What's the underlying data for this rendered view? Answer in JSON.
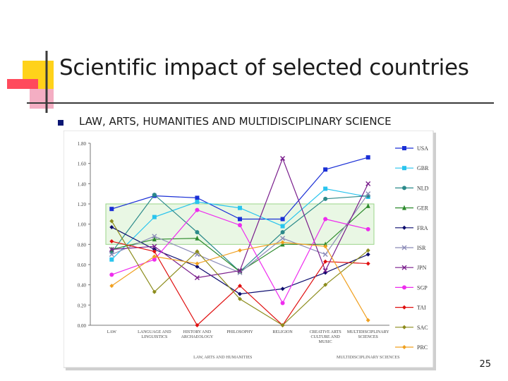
{
  "slide": {
    "title": "Scientific impact of selected countries",
    "bullet": "LAW, ARTS, HUMANITIES AND MULTIDISCIPLINARY SCIENCE",
    "page_number": "25"
  },
  "chart_data": {
    "type": "line",
    "categories": [
      "LAW",
      "LANGUAGE AND LINGUISTICS",
      "HISTORY AND ARCHAEOLOGY",
      "PHILOSOPHY",
      "RELIGION",
      "CREATIVE ARTS CULTURE AND MUSIC",
      "MULTIDISCIPLINARY SCIENCES"
    ],
    "ylim": [
      0,
      1.8
    ],
    "yticks": [
      "0.00",
      "0.20",
      "0.40",
      "0.60",
      "0.80",
      "1.00",
      "1.20",
      "1.40",
      "1.60",
      "1.80"
    ],
    "band": [
      0.8,
      1.2
    ],
    "xlabel_left": "LAW, ARTS AND HUMANITIES",
    "xlabel_right": "MULTIDISCIPLINARY SCIENCES",
    "series": [
      {
        "name": "USA",
        "color": "#1a2fd6",
        "marker": "square",
        "values": [
          1.15,
          1.28,
          1.26,
          1.05,
          1.05,
          1.54,
          1.66
        ]
      },
      {
        "name": "GBR",
        "color": "#29c4ee",
        "marker": "square",
        "values": [
          0.65,
          1.07,
          1.22,
          1.16,
          0.98,
          1.35,
          1.27
        ]
      },
      {
        "name": "NLD",
        "color": "#2b8a8a",
        "marker": "circle",
        "values": [
          0.72,
          1.29,
          0.92,
          0.53,
          0.92,
          1.25,
          1.28
        ]
      },
      {
        "name": "GER",
        "color": "#2e8b2e",
        "marker": "triangle",
        "values": [
          0.75,
          0.85,
          0.86,
          0.53,
          0.8,
          0.8,
          1.18
        ]
      },
      {
        "name": "FRA",
        "color": "#0c0c6e",
        "marker": "diamond",
        "values": [
          0.97,
          0.75,
          0.58,
          0.31,
          0.36,
          0.52,
          0.7
        ]
      },
      {
        "name": "ISR",
        "color": "#8c8cb8",
        "marker": "x",
        "values": [
          0.7,
          0.88,
          0.7,
          0.52,
          0.86,
          0.7,
          1.3
        ]
      },
      {
        "name": "JPN",
        "color": "#7a1e8c",
        "marker": "x",
        "values": [
          0.75,
          0.78,
          0.47,
          0.54,
          1.65,
          0.54,
          1.4
        ]
      },
      {
        "name": "SGP",
        "color": "#ee2cee",
        "marker": "circle",
        "values": [
          0.5,
          0.65,
          1.14,
          0.99,
          0.22,
          1.05,
          0.95
        ]
      },
      {
        "name": "TAI",
        "color": "#e01010",
        "marker": "diamond",
        "values": [
          0.83,
          0.73,
          0.0,
          0.39,
          0.0,
          0.63,
          0.61
        ]
      },
      {
        "name": "SAC",
        "color": "#8c8c1c",
        "marker": "diamond",
        "values": [
          1.03,
          0.33,
          0.73,
          0.26,
          0.0,
          0.4,
          0.74
        ]
      },
      {
        "name": "PRC",
        "color": "#f0a020",
        "marker": "diamond",
        "values": [
          0.39,
          0.68,
          0.61,
          0.74,
          0.82,
          0.78,
          0.05
        ]
      }
    ]
  }
}
